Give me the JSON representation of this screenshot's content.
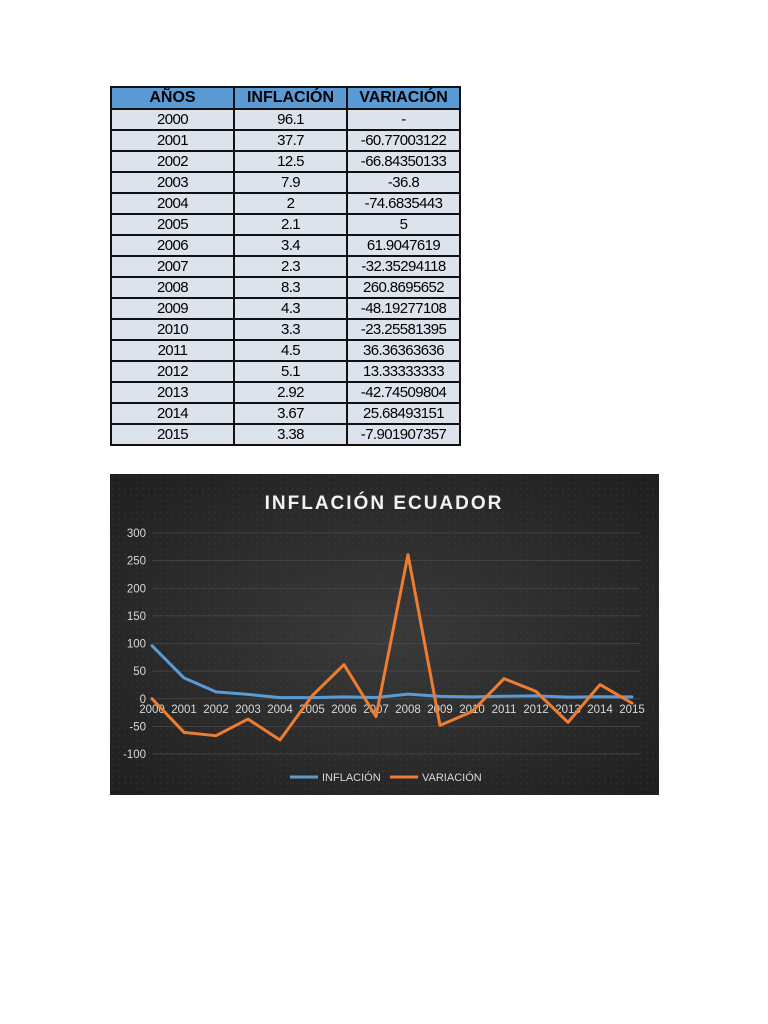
{
  "table": {
    "headers": [
      "AÑOS",
      "INFLACIÓN",
      "VARIACIÓN"
    ],
    "rows": [
      [
        "2000",
        "96.1",
        "-"
      ],
      [
        "2001",
        "37.7",
        "-60.77003122"
      ],
      [
        "2002",
        "12.5",
        "-66.84350133"
      ],
      [
        "2003",
        "7.9",
        "-36.8"
      ],
      [
        "2004",
        "2",
        "-74.6835443"
      ],
      [
        "2005",
        "2.1",
        "5"
      ],
      [
        "2006",
        "3.4",
        "61.9047619"
      ],
      [
        "2007",
        "2.3",
        "-32.35294118"
      ],
      [
        "2008",
        "8.3",
        "260.8695652"
      ],
      [
        "2009",
        "4.3",
        "-48.19277108"
      ],
      [
        "2010",
        "3.3",
        "-23.25581395"
      ],
      [
        "2011",
        "4.5",
        "36.36363636"
      ],
      [
        "2012",
        "5.1",
        "13.33333333"
      ],
      [
        "2013",
        "2.92",
        "-42.74509804"
      ],
      [
        "2014",
        "3.67",
        "25.68493151"
      ],
      [
        "2015",
        "3.38",
        "-7.901907357"
      ]
    ]
  },
  "chart_data": {
    "type": "line",
    "title": "INFLACIÓN ECUADOR",
    "xlabel": "",
    "ylabel": "",
    "x": [
      "2000",
      "2001",
      "2002",
      "2003",
      "2004",
      "2005",
      "2006",
      "2007",
      "2008",
      "2009",
      "2010",
      "2011",
      "2012",
      "2013",
      "2014",
      "2015"
    ],
    "series": [
      {
        "name": "INFLACIÓN",
        "color": "#5b9bd5",
        "values": [
          96.1,
          37.7,
          12.5,
          7.9,
          2,
          2.1,
          3.4,
          2.3,
          8.3,
          4.3,
          3.3,
          4.5,
          5.1,
          2.92,
          3.67,
          3.38
        ]
      },
      {
        "name": "VARIACIÓN",
        "color": "#ed7d31",
        "values": [
          0,
          -60.77003122,
          -66.84350133,
          -36.8,
          -74.6835443,
          5,
          61.9047619,
          -32.35294118,
          260.8695652,
          -48.19277108,
          -23.25581395,
          36.36363636,
          13.33333333,
          -42.74509804,
          25.68493151,
          -7.901907357
        ]
      }
    ],
    "yticks": [
      "300",
      "250",
      "200",
      "150",
      "100",
      "50",
      "0",
      "-50",
      "-100"
    ],
    "ytick_values": [
      300,
      250,
      200,
      150,
      100,
      50,
      0,
      -50,
      -100
    ],
    "ylim": [
      -100,
      300
    ],
    "grid": true,
    "legend_position": "bottom",
    "background": "#262626"
  }
}
